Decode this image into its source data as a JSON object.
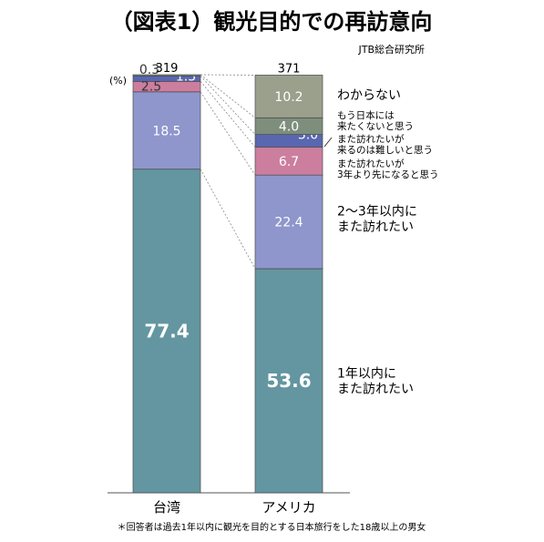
{
  "title": "（図表1）観光目的での再訪意向",
  "source": "JTB総合研究所",
  "unit": "(%)",
  "footnote": "＊回答者は過去1年以内に観光を目的とする日本旅行をした18歳以上の男女",
  "chart_data": {
    "type": "bar",
    "stacked": true,
    "categories": [
      "台湾",
      "アメリカ"
    ],
    "sample_sizes": [
      "319",
      "371"
    ],
    "ylim": [
      0,
      100
    ],
    "series": [
      {
        "name": "1年以内にまた訪れたい",
        "values": [
          77.4,
          53.6
        ],
        "labels": [
          "77.4",
          "53.6"
        ],
        "color": "#6396a0"
      },
      {
        "name": "2～3年以内にまた訪れたい",
        "values": [
          18.5,
          22.4
        ],
        "labels": [
          "18.5",
          "22.4"
        ],
        "color": "#8e96cc"
      },
      {
        "name": "また訪れたいが3年より先になると思う",
        "values": [
          2.5,
          6.7
        ],
        "labels": [
          "2.5",
          "6.7"
        ],
        "color": "#cc7e9e"
      },
      {
        "name": "また訪れたいが来るのは難しいと思う",
        "values": [
          1.3,
          3.0
        ],
        "labels": [
          "1.3",
          "3.0"
        ],
        "color": "#5867b0"
      },
      {
        "name": "もう日本には来たくないと思う",
        "values": [
          0.3,
          4.0
        ],
        "labels": [
          "0.3",
          "4.0"
        ],
        "color": "#7e8e7d"
      },
      {
        "name": "わからない",
        "values": [
          0.0,
          10.2
        ],
        "labels": [
          "",
          "10.2"
        ],
        "color": "#9aa08c"
      }
    ],
    "legend": {
      "placement": "right",
      "entries": [
        [
          "わからない"
        ],
        [
          "もう日本には",
          "来たくないと思う"
        ],
        [
          "また訪れたいが",
          "来るのは難しいと思う"
        ],
        [
          "また訪れたいが",
          "3年より先になると思う"
        ],
        [
          "2～3年以内に",
          "また訪れたい"
        ],
        [
          "1年以内に",
          "また訪れたい"
        ]
      ]
    }
  }
}
